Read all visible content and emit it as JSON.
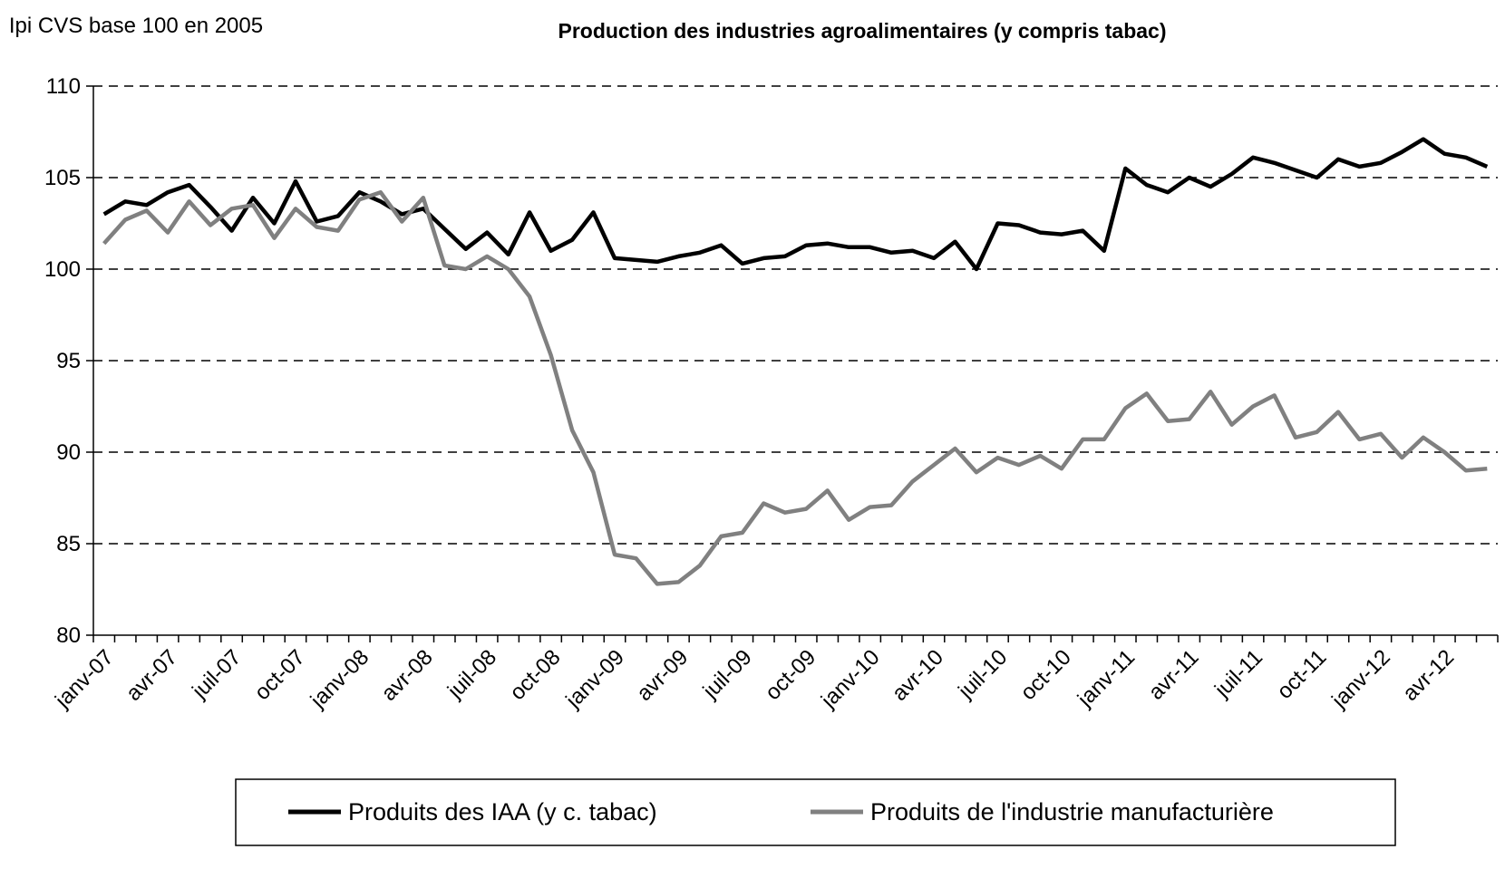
{
  "chart_data": {
    "type": "line",
    "title": "Production des industries agroalimentaires (y compris tabac)",
    "y_label": "Ipi CVS base 100 en 2005",
    "categories": [
      "janv-07",
      null,
      null,
      "avr-07",
      null,
      null,
      "juil-07",
      null,
      null,
      "oct-07",
      null,
      null,
      "janv-08",
      null,
      null,
      "avr-08",
      null,
      null,
      "juil-08",
      null,
      null,
      "oct-08",
      null,
      null,
      "janv-09",
      null,
      null,
      "avr-09",
      null,
      null,
      "juil-09",
      null,
      null,
      "oct-09",
      null,
      null,
      "janv-10",
      null,
      null,
      "avr-10",
      null,
      null,
      "juil-10",
      null,
      null,
      "oct-10",
      null,
      null,
      "janv-11",
      null,
      null,
      "avr-11",
      null,
      null,
      "juil-11",
      null,
      null,
      "oct-11",
      null,
      null,
      "janv-12",
      null,
      null,
      "avr-12",
      null,
      null
    ],
    "series": [
      {
        "name": "Produits des IAA (y c. tabac)",
        "color": "#000000",
        "values": [
          103.0,
          103.7,
          103.5,
          104.2,
          104.6,
          103.4,
          102.1,
          103.9,
          102.5,
          104.8,
          102.6,
          102.9,
          104.2,
          103.7,
          103.0,
          103.3,
          102.2,
          101.1,
          102.0,
          100.8,
          103.1,
          101.0,
          101.6,
          103.1,
          100.6,
          100.5,
          100.4,
          100.7,
          100.9,
          101.3,
          100.3,
          100.6,
          100.7,
          101.3,
          101.4,
          101.2,
          101.2,
          100.9,
          101.0,
          100.6,
          101.5,
          100.0,
          102.5,
          102.4,
          102.0,
          101.9,
          102.1,
          101.0,
          105.5,
          104.6,
          104.2,
          105.0,
          104.5,
          105.2,
          106.1,
          105.8,
          105.4,
          105.0,
          106.0,
          105.6,
          105.8,
          106.4,
          107.1,
          106.3,
          106.1,
          105.6
        ]
      },
      {
        "name": "Produits de l'industrie manufacturière",
        "color": "#808080",
        "values": [
          101.4,
          102.7,
          103.2,
          102.0,
          103.7,
          102.4,
          103.3,
          103.5,
          101.7,
          103.3,
          102.3,
          102.1,
          103.8,
          104.2,
          102.6,
          103.9,
          100.2,
          100.0,
          100.7,
          100.0,
          98.5,
          95.3,
          91.2,
          88.9,
          84.4,
          84.2,
          82.8,
          82.9,
          83.8,
          85.4,
          85.6,
          87.2,
          86.7,
          86.9,
          87.9,
          86.3,
          87.0,
          87.1,
          88.4,
          89.3,
          90.2,
          88.9,
          89.7,
          89.3,
          89.8,
          89.1,
          90.7,
          90.7,
          92.4,
          93.2,
          91.7,
          91.8,
          93.3,
          91.5,
          92.5,
          93.1,
          90.8,
          91.1,
          92.2,
          90.7,
          91.0,
          89.7,
          90.8,
          90.0,
          89.0,
          89.1
        ]
      }
    ],
    "ylim": [
      80,
      110
    ],
    "yticks": [
      80,
      85,
      90,
      95,
      100,
      105,
      110
    ],
    "grid": true,
    "legend": "bottom"
  }
}
